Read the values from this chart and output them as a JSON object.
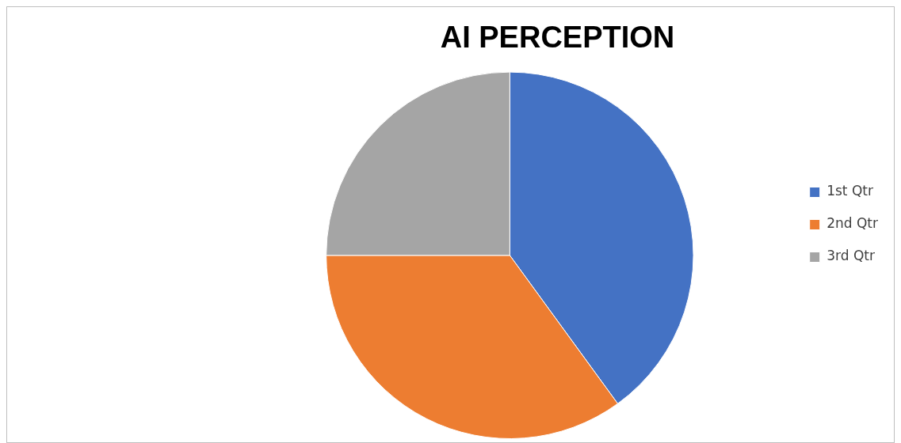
{
  "chart_data": {
    "type": "pie",
    "title": "AI PERCEPTION",
    "categories": [
      "1st Qtr",
      "2nd Qtr",
      "3rd Qtr"
    ],
    "values": [
      40,
      35,
      25
    ],
    "colors": [
      "#4472c4",
      "#ed7d31",
      "#a5a5a5"
    ],
    "legend": "right"
  }
}
